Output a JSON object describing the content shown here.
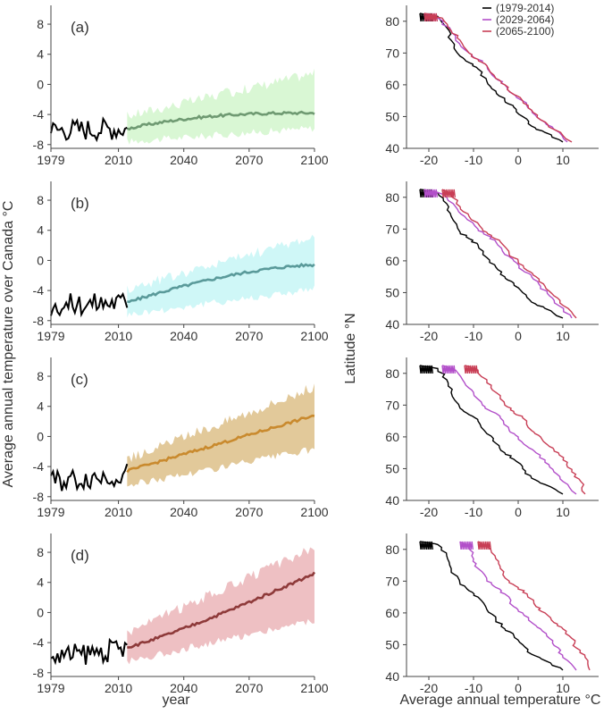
{
  "figure": {
    "left_ylabel": "Average annual temperature over Canada  °C",
    "left_xlabel": "year",
    "right_ylabel": "Latitude  °N",
    "right_xlabel": "Average annual temperature °C",
    "legend": [
      {
        "label": "(1979-2014)",
        "color": "#000000"
      },
      {
        "label": "(2029-2064)",
        "color": "#b24fc9"
      },
      {
        "label": "(2065-2100)",
        "color": "#c83e55"
      }
    ]
  },
  "chart_data": [
    {
      "type": "area",
      "panel": "(a)",
      "title": "(a)",
      "xlabel": "year",
      "ylabel": "Average annual temperature over Canada  °C",
      "xlim": [
        1979,
        2100
      ],
      "ylim": [
        -8.5,
        10.5
      ],
      "xticks": [
        1979,
        2010,
        2040,
        2070,
        2100
      ],
      "yticks": [
        -8,
        -4,
        0,
        4,
        8
      ],
      "line_color": "#6f9a72",
      "fill_color": "#d9f7d4",
      "historical_start": -6.0,
      "historical_end": -5.8,
      "proj_mean_start": -5.9,
      "proj_mean_end": -3.8,
      "proj_mean_shape": "saturating",
      "band_low_start": -7.6,
      "band_low_end": -5.8,
      "band_high_start": -4.2,
      "band_high_end": 1.5
    },
    {
      "type": "area",
      "panel": "(b)",
      "title": "(b)",
      "xlabel": "year",
      "ylabel": "Average annual temperature over Canada  °C",
      "xlim": [
        1979,
        2100
      ],
      "ylim": [
        -8.5,
        10.5
      ],
      "xticks": [
        1979,
        2010,
        2040,
        2070,
        2100
      ],
      "yticks": [
        -8,
        -4,
        0,
        4,
        8
      ],
      "line_color": "#5a9a9a",
      "fill_color": "#cff7f7",
      "historical_start": -6.0,
      "historical_end": -5.5,
      "proj_mean_start": -5.6,
      "proj_mean_end": -0.6,
      "proj_mean_shape": "concave",
      "band_low_start": -7.2,
      "band_low_end": -3.8,
      "band_high_start": -3.8,
      "band_high_end": 3.2
    },
    {
      "type": "area",
      "panel": "(c)",
      "title": "(c)",
      "xlabel": "year",
      "ylabel": "Average annual temperature over Canada  °C",
      "xlim": [
        1979,
        2100
      ],
      "ylim": [
        -8.5,
        10.5
      ],
      "xticks": [
        1979,
        2010,
        2040,
        2070,
        2100
      ],
      "yticks": [
        -8,
        -4,
        0,
        4,
        8
      ],
      "line_color": "#c98a2e",
      "fill_color": "#e2c99a",
      "historical_start": -6.0,
      "historical_end": -5.0,
      "proj_mean_start": -4.6,
      "proj_mean_end": 2.8,
      "proj_mean_shape": "linear",
      "band_low_start": -6.5,
      "band_low_end": -1.7,
      "band_high_start": -3.0,
      "band_high_end": 6.6
    },
    {
      "type": "area",
      "panel": "(d)",
      "title": "(d)",
      "xlabel": "year",
      "ylabel": "Average annual temperature over Canada  °C",
      "xlim": [
        1979,
        2100
      ],
      "ylim": [
        -8.5,
        10.5
      ],
      "xticks": [
        1979,
        2010,
        2040,
        2070,
        2100
      ],
      "yticks": [
        -8,
        -4,
        0,
        4,
        8
      ],
      "line_color": "#8e3a3a",
      "fill_color": "#eec0c3",
      "historical_start": -6.0,
      "historical_end": -4.8,
      "proj_mean_start": -4.6,
      "proj_mean_end": 5.2,
      "proj_mean_shape": "convex",
      "band_low_start": -6.5,
      "band_low_end": -1.0,
      "band_high_start": -2.6,
      "band_high_end": 8.6
    },
    {
      "type": "line",
      "panel": "right-1",
      "xlabel": "Average annual temperature °C",
      "ylabel": "Latitude  °N",
      "xlim": [
        -25,
        18
      ],
      "ylim": [
        40,
        85
      ],
      "xticks": [
        -20,
        -10,
        0,
        10
      ],
      "yticks": [
        40,
        50,
        60,
        70,
        80
      ],
      "series": [
        {
          "name": "(1979-2014)",
          "x": [
            -22,
            -18,
            -16,
            -15,
            -13,
            -11,
            -9,
            -7,
            -5,
            -3,
            -1,
            1,
            3,
            6,
            10
          ],
          "y": [
            82.5,
            81.5,
            78,
            74,
            69,
            67,
            65,
            61,
            58,
            55,
            53,
            50,
            47,
            45,
            42
          ]
        },
        {
          "name": "(2029-2064)",
          "x": [
            -21,
            -18,
            -15,
            -14,
            -11,
            -9,
            -7,
            -5,
            -3,
            -1,
            1,
            3,
            5,
            8,
            11
          ],
          "y": [
            82.5,
            81,
            77,
            74,
            70,
            68,
            66,
            62,
            60,
            57,
            55,
            52,
            49,
            46,
            42
          ]
        },
        {
          "name": "(2065-2100)",
          "x": [
            -21,
            -17,
            -15,
            -13,
            -11,
            -9,
            -7,
            -5,
            -3,
            -1,
            1,
            3,
            5,
            8,
            12
          ],
          "y": [
            82.5,
            81,
            77,
            74,
            70,
            68,
            66,
            62,
            60,
            57,
            55,
            52,
            49,
            46,
            42
          ]
        }
      ]
    },
    {
      "type": "line",
      "panel": "right-2",
      "xlabel": "Average annual temperature °C",
      "ylabel": "Latitude  °N",
      "xlim": [
        -25,
        18
      ],
      "ylim": [
        40,
        85
      ],
      "xticks": [
        -20,
        -10,
        0,
        10
      ],
      "yticks": [
        40,
        50,
        60,
        70,
        80
      ],
      "series": [
        {
          "name": "(1979-2014)",
          "x": [
            -22,
            -18,
            -16,
            -15,
            -13,
            -11,
            -9,
            -7,
            -5,
            -3,
            -1,
            1,
            3,
            6,
            10
          ],
          "y": [
            82.5,
            81.5,
            78,
            74,
            69,
            67,
            65,
            61,
            58,
            55,
            53,
            50,
            47,
            45,
            42
          ]
        },
        {
          "name": "(2029-2064)",
          "x": [
            -21,
            -17,
            -14,
            -12,
            -9,
            -7,
            -5,
            -3,
            -1,
            1,
            3,
            5,
            7,
            9,
            12
          ],
          "y": [
            82.5,
            81,
            77,
            74,
            70,
            68,
            66,
            62,
            60,
            57,
            55,
            52,
            49,
            46,
            42
          ]
        },
        {
          "name": "(2065-2100)",
          "x": [
            -17,
            -15,
            -13,
            -11,
            -8,
            -6,
            -4,
            -2,
            0,
            2,
            4,
            6,
            8,
            10,
            13
          ],
          "y": [
            82.5,
            81,
            77,
            74,
            70,
            68,
            66,
            62,
            60,
            57,
            55,
            52,
            49,
            46,
            42
          ]
        }
      ]
    },
    {
      "type": "line",
      "panel": "right-3",
      "xlabel": "Average annual temperature °C",
      "ylabel": "Latitude  °N",
      "xlim": [
        -25,
        18
      ],
      "ylim": [
        40,
        85
      ],
      "xticks": [
        -20,
        -10,
        0,
        10
      ],
      "yticks": [
        40,
        50,
        60,
        70,
        80
      ],
      "series": [
        {
          "name": "(1979-2014)",
          "x": [
            -22,
            -18,
            -16,
            -15,
            -13,
            -11,
            -9,
            -7,
            -5,
            -3,
            -1,
            1,
            3,
            6,
            10
          ],
          "y": [
            82.5,
            81.5,
            78,
            74,
            69,
            67,
            65,
            61,
            58,
            55,
            53,
            50,
            47,
            45,
            42
          ]
        },
        {
          "name": "(2029-2064)",
          "x": [
            -17,
            -14,
            -12,
            -10,
            -8,
            -6,
            -4,
            -2,
            0,
            2,
            4,
            6,
            8,
            10,
            13
          ],
          "y": [
            82.5,
            81,
            77,
            74,
            70,
            68,
            66,
            62,
            60,
            57,
            55,
            52,
            49,
            46,
            42
          ]
        },
        {
          "name": "(2065-2100)",
          "x": [
            -12,
            -9,
            -7,
            -5,
            -3,
            -1,
            1,
            3,
            5,
            7,
            9,
            11,
            12,
            14,
            15
          ],
          "y": [
            82.5,
            81,
            77,
            74,
            70,
            68,
            66,
            62,
            60,
            57,
            55,
            52,
            49,
            46,
            42
          ]
        }
      ]
    },
    {
      "type": "line",
      "panel": "right-4",
      "xlabel": "Average annual temperature °C",
      "ylabel": "Latitude  °N",
      "xlim": [
        -25,
        18
      ],
      "ylim": [
        40,
        85
      ],
      "xticks": [
        -20,
        -10,
        0,
        10
      ],
      "yticks": [
        40,
        50,
        60,
        70,
        80
      ],
      "series": [
        {
          "name": "(1979-2014)",
          "x": [
            -22,
            -18,
            -16,
            -15,
            -13,
            -11,
            -9,
            -7,
            -5,
            -3,
            -1,
            1,
            3,
            6,
            10
          ],
          "y": [
            82.5,
            81.5,
            78,
            74,
            69,
            67,
            65,
            61,
            58,
            55,
            53,
            50,
            47,
            45,
            42
          ]
        },
        {
          "name": "(2029-2064)",
          "x": [
            -13,
            -11,
            -10,
            -9,
            -7,
            -5,
            -3,
            -1,
            1,
            3,
            5,
            7,
            9,
            10,
            13
          ],
          "y": [
            82.5,
            81,
            77,
            74,
            70,
            68,
            66,
            62,
            60,
            57,
            55,
            52,
            49,
            46,
            42
          ]
        },
        {
          "name": "(2065-2100)",
          "x": [
            -9,
            -7,
            -5,
            -4,
            -2,
            0,
            2,
            4,
            6,
            8,
            10,
            12,
            13,
            15,
            16
          ],
          "y": [
            82.5,
            81,
            77,
            74,
            70,
            68,
            66,
            62,
            60,
            57,
            55,
            52,
            49,
            46,
            42
          ]
        }
      ]
    }
  ]
}
